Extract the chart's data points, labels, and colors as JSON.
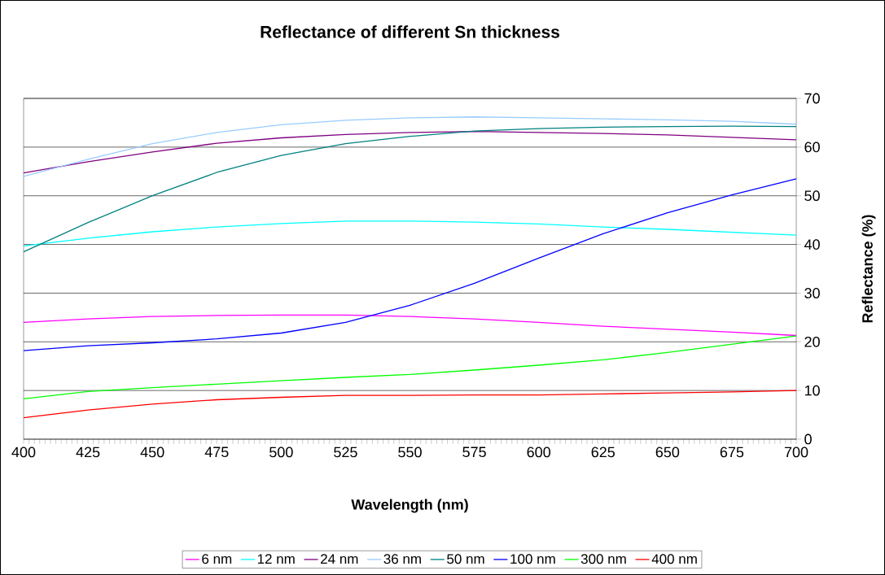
{
  "chart_data": {
    "type": "line",
    "title": "Reflectance of different Sn thickness",
    "xlabel": "Wavelength (nm)",
    "ylabel": "Reflectance (%)",
    "x": [
      400,
      425,
      450,
      475,
      500,
      525,
      550,
      575,
      600,
      625,
      650,
      675,
      700
    ],
    "series": [
      {
        "name": "6 nm",
        "color": "#ff00ff",
        "values": [
          24,
          24.7,
          25.2,
          25.4,
          25.5,
          25.5,
          25.2,
          24.7,
          24,
          23.2,
          22.6,
          22,
          21.3
        ]
      },
      {
        "name": "12 nm",
        "color": "#00ffff",
        "values": [
          39.7,
          41.3,
          42.6,
          43.6,
          44.3,
          44.8,
          44.8,
          44.6,
          44.2,
          43.6,
          43.1,
          42.5,
          41.9
        ]
      },
      {
        "name": "24 nm",
        "color": "#800080",
        "values": [
          54.7,
          57,
          59,
          60.8,
          61.9,
          62.6,
          63,
          63.2,
          63,
          62.8,
          62.5,
          62,
          61.5
        ]
      },
      {
        "name": "36 nm",
        "color": "#99ccff",
        "values": [
          54,
          57.5,
          60.7,
          63,
          64.6,
          65.5,
          66,
          66.2,
          66,
          65.8,
          65.6,
          65.3,
          64.7
        ]
      },
      {
        "name": "50 nm",
        "color": "#008080",
        "values": [
          38.5,
          44.5,
          50,
          54.8,
          58.3,
          60.7,
          62.2,
          63.3,
          63.8,
          64.1,
          64.2,
          64.3,
          64.2
        ]
      },
      {
        "name": "100 nm",
        "color": "#0000ff",
        "values": [
          18.2,
          19.2,
          19.8,
          20.6,
          21.8,
          24,
          27.5,
          32,
          37.2,
          42.2,
          46.5,
          50.2,
          53.5
        ]
      },
      {
        "name": "300 nm",
        "color": "#00ff00",
        "values": [
          8.3,
          9.8,
          10.6,
          11.3,
          12,
          12.7,
          13.3,
          14.2,
          15.2,
          16.3,
          17.8,
          19.5,
          21.2
        ]
      },
      {
        "name": "400 nm",
        "color": "#ff0000",
        "values": [
          4.4,
          6,
          7.2,
          8.1,
          8.6,
          9,
          9,
          9.1,
          9.1,
          9.3,
          9.5,
          9.7,
          10
        ]
      }
    ],
    "xlim": [
      400,
      700
    ],
    "ylim": [
      0,
      70
    ],
    "xticks": [
      400,
      425,
      450,
      475,
      500,
      525,
      550,
      575,
      600,
      625,
      650,
      675,
      700
    ],
    "yticks": [
      0,
      10,
      20,
      30,
      40,
      50,
      60,
      70
    ],
    "grid": "y",
    "legend": "bottom"
  }
}
